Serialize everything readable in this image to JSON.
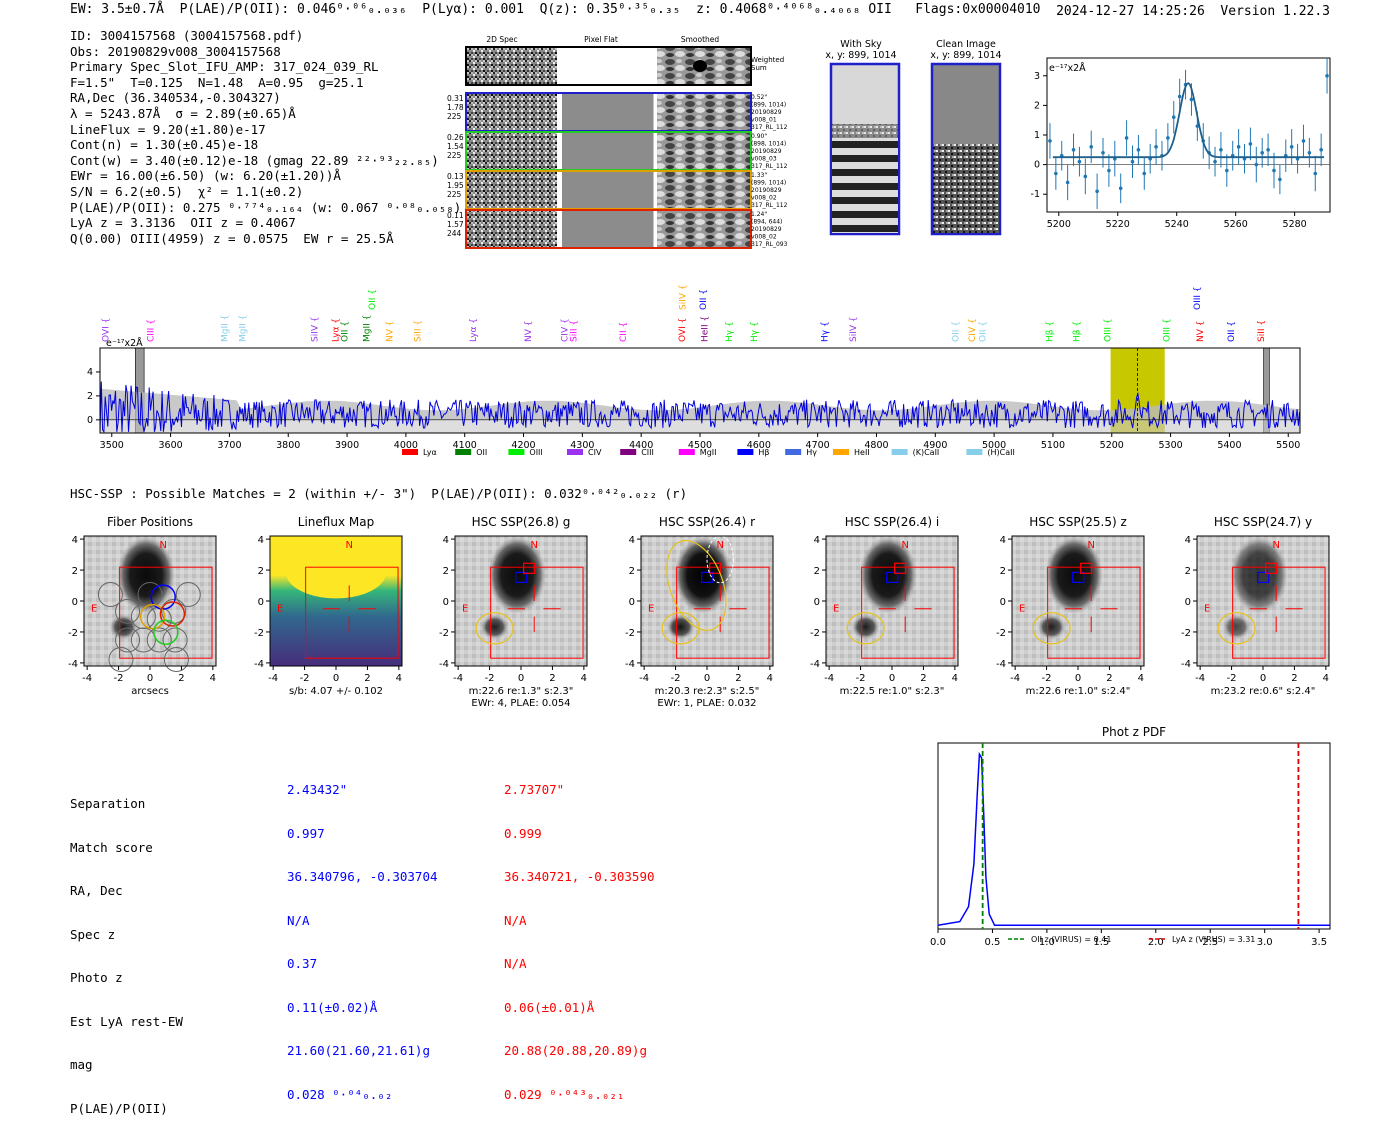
{
  "header": {
    "line": "EW: 3.5±0.7Å  P(LAE)/P(OII): 0.046⁰·⁰⁶₀.₀₃₆  P(Lyα): 0.001  Q(z): 0.35⁰·³⁵₀.₃₅  z: 0.4068⁰·⁴⁰⁶⁸₀.₄₀₆₈ OII   Flags:0x00004010",
    "timestamp": "2024-12-27 14:25:26  Version 1.22.3"
  },
  "info": [
    "ID: 3004157568 (3004157568.pdf)",
    "Obs: 20190829v008_3004157568",
    "Primary Spec_Slot_IFU_AMP: 317_024_039_RL",
    "F=1.5\"  T=0.125  N=1.48  A=0.95  g=25.1",
    "RA,Dec (36.340534,-0.304327)",
    "λ = 5243.87Å  σ = 2.89(±0.65)Å",
    "LineFlux = 9.20(±1.80)e-17",
    "Cont(n) = 1.30(±0.45)e-18",
    "Cont(w) = 3.40(±0.12)e-18 (gmag 22.89 ²²·⁹³₂₂.₈₅)",
    "EWr = 16.00(±6.50) (w: 6.20(±1.20))Å",
    "S/N = 6.2(±0.5)  χ² = 1.1(±0.2)",
    "P(LAE)/P(OII): 0.275 ⁰·⁷⁷⁴₀.₁₆₄ (w: 0.067 ⁰·⁰⁸₀.₀₅₈)",
    "LyA z = 3.3136  OII z = 0.4067",
    "Q(0.00) OIII(4959) z = 0.0575  EW r = 25.5Å"
  ],
  "cutouts": {
    "col_headers": [
      "2D Spec",
      "Pixel Flat",
      "Smoothed"
    ],
    "weighted_label": "Weighted Sum",
    "rows": [
      {
        "left": [
          "0.31",
          "1.78",
          "225"
        ],
        "right": [
          "0.52\"",
          "(899, 1014)",
          "20190829",
          "v008_01",
          "317_RL_112"
        ],
        "color": "#1f1fcc"
      },
      {
        "left": [
          "0.26",
          "1.54",
          "225"
        ],
        "right": [
          "0.90\"",
          "(898, 1014)",
          "20190829",
          "v008_03",
          "317_RL_112"
        ],
        "color": "#22cc22"
      },
      {
        "left": [
          "0.13",
          "1.95",
          "225"
        ],
        "right": [
          "1.33\"",
          "(899, 1014)",
          "20190829",
          "v008_02",
          "317_RL_112"
        ],
        "color": "#e0a000"
      },
      {
        "left": [
          "0.11",
          "1.57",
          "244"
        ],
        "right": [
          "1.24\"",
          "(894, 644)",
          "20190829",
          "v008_02",
          "317_RL_093"
        ],
        "color": "#dd2200"
      }
    ]
  },
  "panels": {
    "with_sky": {
      "title": "With Sky",
      "coords": "x, y: 899, 1014"
    },
    "clean": {
      "title": "Clean Image",
      "coords": "x, y: 899, 1014"
    }
  },
  "zoom_chart_unit": "e⁻¹⁷x2Å",
  "main_chart_unit": "e⁻¹⁷x2Å",
  "spectrum_legend": [
    {
      "label": "Lyα",
      "color": "#ff0000"
    },
    {
      "label": "OII",
      "color": "#008000"
    },
    {
      "label": "OIII",
      "color": "#00ee00"
    },
    {
      "label": "CIV",
      "color": "#9933ee"
    },
    {
      "label": "CIII",
      "color": "#800080"
    },
    {
      "label": "MgII",
      "color": "#ff00ff"
    },
    {
      "label": "Hβ",
      "color": "#0000ff"
    },
    {
      "label": "Hγ",
      "color": "#4169e1"
    },
    {
      "label": "HeII",
      "color": "#ffa500"
    },
    {
      "label": "(K)CaII",
      "color": "#87ceeb"
    },
    {
      "label": "(H)CaII",
      "color": "#87ceeb"
    }
  ],
  "line_markers": [
    {
      "label": "OVI",
      "wave": 3489,
      "color": "#9933ee",
      "tier": 0
    },
    {
      "label": "CIII",
      "wave": 3566,
      "color": "#ff00ff",
      "tier": 0
    },
    {
      "label": "MgII",
      "wave": 3692,
      "color": "#87ceeb",
      "tier": 0
    },
    {
      "label": "MgII",
      "wave": 3722,
      "color": "#87ceeb",
      "tier": 0
    },
    {
      "label": "SiIV",
      "wave": 3845,
      "color": "#9933ee",
      "tier": 0
    },
    {
      "label": "Lyα",
      "wave": 3880,
      "color": "#ff0000",
      "tier": 0
    },
    {
      "label": "OII",
      "wave": 3896,
      "color": "#008000",
      "tier": 0
    },
    {
      "label": "MgII",
      "wave": 3933,
      "color": "#008000",
      "tier": 0
    },
    {
      "label": "OII",
      "wave": 3942,
      "color": "#00ee00",
      "tier": 1
    },
    {
      "label": "NV",
      "wave": 3972,
      "color": "#ffa500",
      "tier": 0
    },
    {
      "label": "SiII",
      "wave": 4020,
      "color": "#ffa500",
      "tier": 0
    },
    {
      "label": "Lyα",
      "wave": 4114,
      "color": "#9933ee",
      "tier": 0
    },
    {
      "label": "NV",
      "wave": 4208,
      "color": "#9933ee",
      "tier": 0
    },
    {
      "label": "CIV",
      "wave": 4270,
      "color": "#9933ee",
      "tier": 0
    },
    {
      "label": "SiII",
      "wave": 4285,
      "color": "#ff00ff",
      "tier": 0
    },
    {
      "label": "CII",
      "wave": 4369,
      "color": "#ff00ff",
      "tier": 0
    },
    {
      "label": "OVI",
      "wave": 4469,
      "color": "#ff0000",
      "tier": 0
    },
    {
      "label": "SiIV",
      "wave": 4470,
      "color": "#ffa500",
      "tier": 1
    },
    {
      "label": "OII",
      "wave": 4505,
      "color": "#0000ff",
      "tier": 1
    },
    {
      "label": "HeII",
      "wave": 4508,
      "color": "#800080",
      "tier": 0
    },
    {
      "label": "Hγ",
      "wave": 4549,
      "color": "#00ee00",
      "tier": 0
    },
    {
      "label": "Hγ",
      "wave": 4592,
      "color": "#00ee00",
      "tier": 0
    },
    {
      "label": "Hγ",
      "wave": 4712,
      "color": "#0000ff",
      "tier": 0
    },
    {
      "label": "SiIV",
      "wave": 4760,
      "color": "#9933ee",
      "tier": 0
    },
    {
      "label": "OII",
      "wave": 4934,
      "color": "#87ceeb",
      "tier": 0
    },
    {
      "label": "CIV",
      "wave": 4962,
      "color": "#ffa500",
      "tier": 0
    },
    {
      "label": "OII",
      "wave": 4980,
      "color": "#87ceeb",
      "tier": 0
    },
    {
      "label": "Hβ",
      "wave": 5094,
      "color": "#00ee00",
      "tier": 0
    },
    {
      "label": "Hβ",
      "wave": 5140,
      "color": "#00ee00",
      "tier": 0
    },
    {
      "label": "OIII",
      "wave": 5193,
      "color": "#00ee00",
      "tier": 0
    },
    {
      "label": "OIII",
      "wave": 5293,
      "color": "#00ee00",
      "tier": 0
    },
    {
      "label": "OIII",
      "wave": 5345,
      "color": "#0000ff",
      "tier": 1
    },
    {
      "label": "NV",
      "wave": 5350,
      "color": "#ff0000",
      "tier": 0
    },
    {
      "label": "OII",
      "wave": 5403,
      "color": "#0000ff",
      "tier": 0
    },
    {
      "label": "SiII",
      "wave": 5454,
      "color": "#ff0000",
      "tier": 0
    }
  ],
  "hsc": {
    "title": "HSC-SSP : Possible Matches = 2 (within +/- 3\")  P(LAE)/P(OII): 0.032⁰·⁰⁴²₀.₀₂₂ (r)",
    "panels": [
      {
        "title": "Fiber Positions",
        "sub1": "arcsecs",
        "sub2": ""
      },
      {
        "title": "Lineflux Map",
        "sub1": "s/b: 4.07 +/- 0.102",
        "sub2": ""
      },
      {
        "title": "HSC SSP(26.8) g",
        "sub1": "m:22.6  re:1.3\"  s:2.3\"",
        "sub2": "EWr: 4, PLAE: 0.054"
      },
      {
        "title": "HSC SSP(26.4) r",
        "sub1": "m:20.3  re:2.3\"  s:2.5\"",
        "sub2": "EWr: 1, PLAE: 0.032"
      },
      {
        "title": "HSC SSP(26.4) i",
        "sub1": "m:22.5  re:1.0\"  s:2.3\"",
        "sub2": ""
      },
      {
        "title": "HSC SSP(25.5) z",
        "sub1": "m:22.6  re:1.0\"  s:2.4\"",
        "sub2": ""
      },
      {
        "title": "HSC SSP(24.7) y",
        "sub1": "m:23.2  re:0.6\"  s:2.4\"",
        "sub2": ""
      }
    ],
    "compass_n": "N",
    "compass_e": "E"
  },
  "match_table": {
    "labels": [
      "Separation",
      "Match score",
      "RA, Dec",
      "Spec z",
      "Photo z",
      "Est LyA rest-EW",
      "mag",
      "P(LAE)/P(OII)"
    ],
    "match1": [
      "2.43432\"",
      "0.997",
      "36.340796, -0.303704",
      "0.37",
      "N/A",
      "0.11(±0.02)Å",
      "21.60(21.60,21.61)g",
      "0.028 ⁰·⁰⁴₀.₀₂"
    ],
    "match2": [
      "2.73707\"",
      "0.999",
      "36.340721, -0.303590",
      "N/A",
      "N/A",
      "0.06(±0.01)Å",
      "20.88(20.88,20.89)g",
      "0.029 ⁰·⁰⁴³₀.₀₂₁"
    ],
    "match1_color": "#0000ff",
    "match2_color": "#ff0000"
  },
  "chart_data": [
    {
      "type": "line",
      "title": "Line zoom (flux vs wavelength)",
      "xlabel": "",
      "ylabel": "e⁻¹⁷x2Å",
      "xlim": [
        5196,
        5292
      ],
      "ylim": [
        -1.6,
        3.6
      ],
      "x_ticks": [
        5200,
        5220,
        5240,
        5260,
        5280
      ],
      "y_ticks": [
        -1,
        0,
        1,
        2,
        3
      ],
      "series": [
        {
          "name": "data",
          "x": [
            5197,
            5199,
            5201,
            5203,
            5205,
            5207,
            5209,
            5211,
            5213,
            5215,
            5217,
            5219,
            5221,
            5223,
            5225,
            5227,
            5229,
            5231,
            5233,
            5235,
            5237,
            5239,
            5241,
            5243,
            5245,
            5247,
            5249,
            5251,
            5253,
            5255,
            5257,
            5259,
            5261,
            5263,
            5265,
            5267,
            5269,
            5271,
            5273,
            5275,
            5277,
            5279,
            5281,
            5283,
            5285,
            5287,
            5289,
            5291
          ],
          "y": [
            0.8,
            -0.3,
            0.3,
            -0.6,
            0.5,
            0.1,
            -0.4,
            0.6,
            -0.9,
            0.4,
            -0.2,
            0.2,
            -0.8,
            0.9,
            0.1,
            0.5,
            -0.3,
            0.2,
            0.6,
            0.3,
            0.9,
            1.6,
            2.3,
            2.7,
            2.2,
            1.3,
            0.8,
            0.4,
            0.1,
            0.5,
            -0.2,
            0.3,
            0.6,
            0.2,
            0.7,
            0.0,
            0.4,
            0.5,
            -0.2,
            -0.5,
            0.3,
            0.6,
            0.2,
            0.8,
            0.4,
            -0.3,
            0.5,
            3.0
          ],
          "err": [
            0.6,
            0.55,
            0.5,
            0.6,
            0.55,
            0.5,
            0.6,
            0.55,
            0.6,
            0.5,
            0.55,
            0.6,
            0.5,
            0.6,
            0.55,
            0.5,
            0.55,
            0.5,
            0.6,
            0.5,
            0.5,
            0.55,
            0.6,
            0.5,
            0.55,
            0.5,
            0.6,
            0.55,
            0.5,
            0.6,
            0.55,
            0.5,
            0.6,
            0.5,
            0.55,
            0.6,
            0.5,
            0.55,
            0.6,
            0.5,
            0.55,
            0.6,
            0.5,
            0.55,
            0.5,
            0.6,
            0.55,
            0.6
          ]
        },
        {
          "name": "gaussian fit",
          "center": 5243.87,
          "sigma": 2.89,
          "amplitude": 2.5,
          "continuum": 0.25
        }
      ]
    },
    {
      "type": "line",
      "title": "Full spectrum",
      "xlabel": "",
      "ylabel": "e⁻¹⁷x2Å",
      "xlim": [
        3480,
        5520
      ],
      "ylim": [
        -1.1,
        6.0
      ],
      "x_ticks": [
        3500,
        3600,
        3700,
        3800,
        3900,
        4000,
        4100,
        4200,
        4300,
        4400,
        4500,
        4600,
        4700,
        4800,
        4900,
        5000,
        5100,
        5200,
        5300,
        5400,
        5500
      ],
      "y_ticks": [
        0,
        2,
        4
      ],
      "highlight_band": [
        5198,
        5290
      ],
      "line_center": 5243.87,
      "masked_regions": [
        [
          3540,
          3555
        ],
        [
          5458,
          5468
        ]
      ]
    },
    {
      "type": "line",
      "title": "Phot z PDF",
      "xlabel": "",
      "ylabel": "",
      "xlim": [
        0.0,
        3.6
      ],
      "ylim": [
        0,
        1.0
      ],
      "x_ticks": [
        0.0,
        0.5,
        1.0,
        1.5,
        2.0,
        2.5,
        3.0,
        3.5
      ],
      "x_tick_labels": [
        "0.0",
        "0.5",
        "1.0",
        "1.5",
        "2.0",
        "2.5",
        "3.0",
        "3.5"
      ],
      "series": [
        {
          "name": "PDF",
          "x": [
            0.0,
            0.2,
            0.28,
            0.33,
            0.36,
            0.38,
            0.4,
            0.42,
            0.44,
            0.47,
            0.52,
            0.6,
            1.0,
            2.0,
            3.0,
            3.6
          ],
          "y": [
            0.02,
            0.04,
            0.12,
            0.35,
            0.72,
            0.94,
            0.92,
            0.62,
            0.28,
            0.08,
            0.02,
            0.02,
            0.02,
            0.02,
            0.02,
            0.02
          ]
        }
      ],
      "vlines": [
        {
          "name": "OII z (VIRUS) = 0.41",
          "x": 0.41,
          "color": "#008000"
        },
        {
          "name": "LyA z (VIRUS) = 3.31",
          "x": 3.31,
          "color": "#dd0000"
        }
      ]
    }
  ]
}
